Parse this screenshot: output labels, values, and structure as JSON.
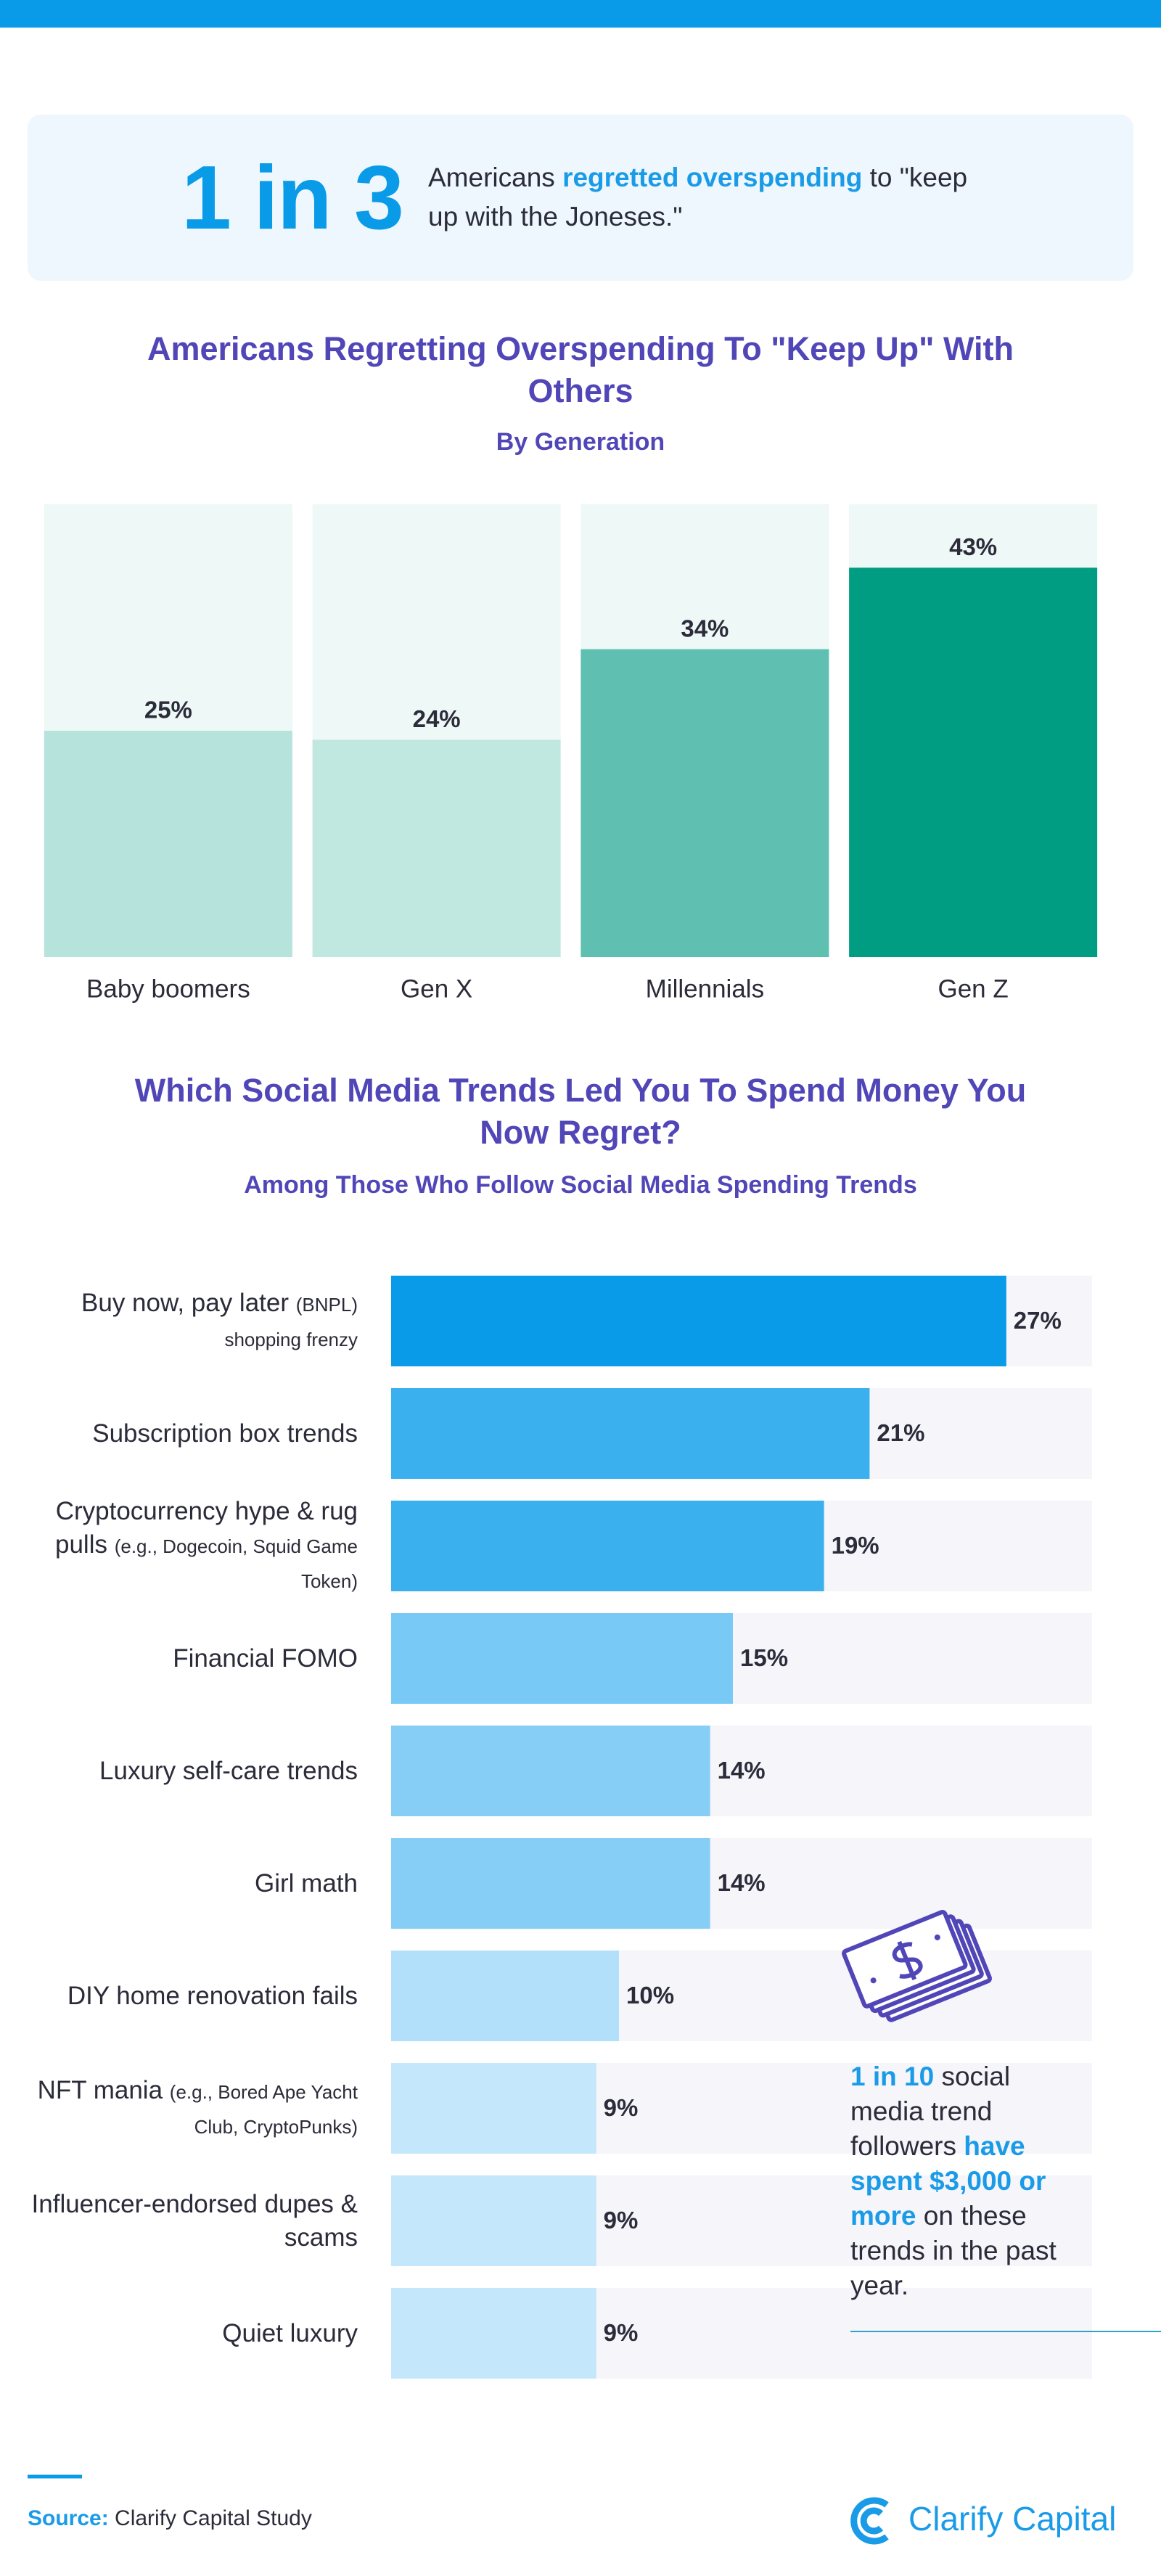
{
  "header": {
    "stat": "1 in 3",
    "text_parts": [
      {
        "text": "Americans",
        "highlight": false
      },
      {
        "text": "regretted overspending",
        "highlight": true
      },
      {
        "text": "to \"keep up with the Joneses.\"",
        "highlight": false
      }
    ]
  },
  "chart_data": [
    {
      "type": "bar",
      "title": "Americans Regretting Overspending To \"Keep Up\" With Others",
      "subtitle": "By Generation",
      "categories": [
        "Baby boomers",
        "Gen X",
        "Millennials",
        "Gen Z"
      ],
      "values": [
        25,
        24,
        34,
        43
      ],
      "value_labels": [
        "25%",
        "24%",
        "34%",
        "43%"
      ],
      "colors": [
        "#b7e3dd",
        "#c1e7e1",
        "#5fbfb0",
        "#009d83"
      ],
      "ylim": [
        0,
        50
      ]
    },
    {
      "type": "hbar",
      "title": "Which Social Media Trends Led You To Spend Money You Now Regret?",
      "subtitle": "Among Those Who Follow Social Media Spending Trends",
      "categories": [
        "Buy now, pay later (BNPL) shopping frenzy",
        "Subscription box trends",
        "Cryptocurrency hype & rug pulls (e.g., Dogecoin, Squid Game Token)",
        "Financial FOMO",
        "Luxury self-care trends",
        "Girl math",
        "DIY home renovation fails",
        "NFT mania (e.g., Bored Ape Yacht Club, CryptoPunks)",
        "Influencer-endorsed dupes & scams",
        "Quiet luxury"
      ],
      "values": [
        27,
        21,
        19,
        15,
        14,
        14,
        10,
        9,
        9,
        9
      ],
      "value_labels": [
        "27%",
        "21%",
        "19%",
        "15%",
        "14%",
        "14%",
        "10%",
        "9%",
        "9%",
        "9%"
      ],
      "colors": [
        "#0a9be8",
        "#3bb0ee",
        "#3bb0ee",
        "#78c9f5",
        "#86cef6",
        "#86cef6",
        "#b2e0fa",
        "#c4e7fb",
        "#c4e7fb",
        "#c4e7fb"
      ],
      "xlim": [
        0,
        30
      ]
    }
  ],
  "callout": {
    "parts": [
      {
        "text": "1 in 10",
        "highlight": true
      },
      {
        "text": "social media trend followers",
        "highlight": false
      },
      {
        "text": "have spent $3,000 or more",
        "highlight": true
      },
      {
        "text": "on these trends in the past year.",
        "highlight": false
      }
    ]
  },
  "footer": {
    "source_label": "Source:",
    "source": "Clarify Capital Study",
    "logo": "Clarify Capital"
  }
}
